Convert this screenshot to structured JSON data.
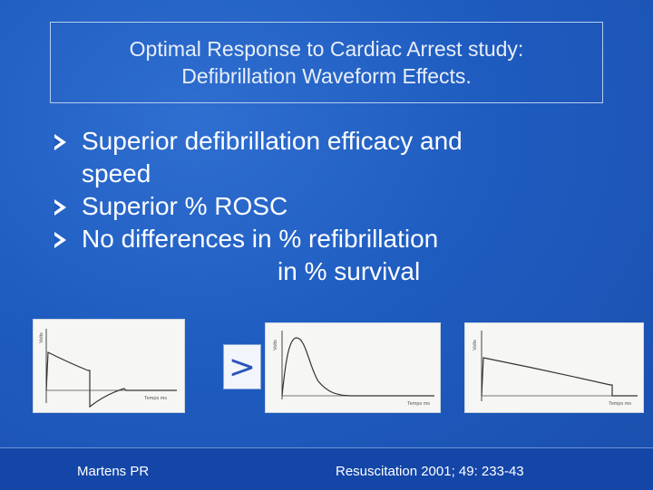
{
  "title": {
    "line1": "Optimal Response to Cardiac Arrest study:",
    "line2": "Defibrillation Waveform Effects."
  },
  "bullets": [
    {
      "line1": "Superior defibrillation efficacy and",
      "line2": "speed"
    },
    {
      "line1": "Superior % ROSC"
    },
    {
      "line1": "No differences in % refibrillation",
      "line2": "in % survival"
    }
  ],
  "comparison_symbol": ">",
  "waveforms": [
    {
      "y_label": "Volts",
      "x_label": "Temps ms",
      "shape": "biphasic-truncated-exponential"
    },
    {
      "y_label": "Volts",
      "x_label": "Temps ms",
      "shape": "monophasic-damped-sine"
    },
    {
      "y_label": "Volts",
      "x_label": "Temps ms",
      "shape": "monophasic-truncated-exponential"
    }
  ],
  "footer": {
    "author": "Martens PR",
    "citation": "Resuscitation  2001; 49: 233-43"
  },
  "colors": {
    "background": "#1f5cc0",
    "footer": "#1446a8",
    "text": "#ffffff"
  }
}
